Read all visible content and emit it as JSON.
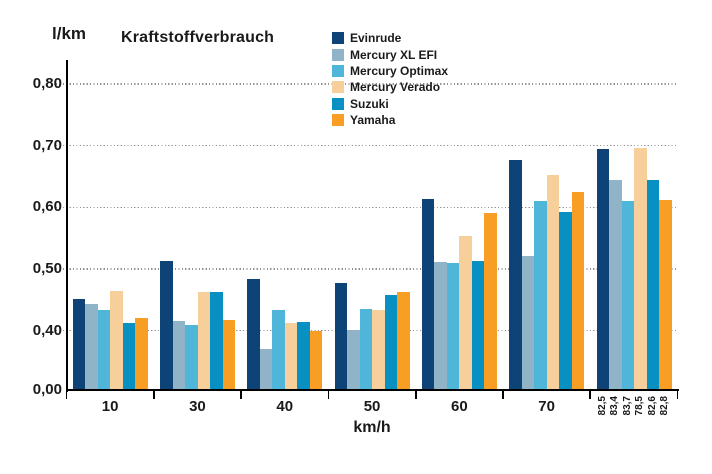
{
  "colors": {
    "background": "#ffffff",
    "axis": "#000000",
    "grid_dots": "#939393",
    "text": "#1a1a1a"
  },
  "chart_data": {
    "type": "bar",
    "title": "Kraftstoffverbrauch",
    "ylabel": "l/km",
    "xlabel": "km/h",
    "legend_position": "top-center",
    "grid": "dotted horizontal lines at each labeled y tick",
    "y_axis": {
      "ticks": [
        {
          "label": "0,00",
          "value": 0.0
        },
        {
          "label": "0,40",
          "value": 0.4
        },
        {
          "label": "0,50",
          "value": 0.5
        },
        {
          "label": "0,60",
          "value": 0.6
        },
        {
          "label": "0,70",
          "value": 0.7
        },
        {
          "label": "0,80",
          "value": 0.8
        }
      ],
      "axis_break": {
        "from": 0.0,
        "to": 0.4,
        "note": "segment 0,00-0,40 compressed to one tick interval"
      }
    },
    "series": [
      {
        "name": "Evinrude",
        "color": "#0d4377"
      },
      {
        "name": "Mercury XL EFI",
        "color": "#91b3c7"
      },
      {
        "name": "Mercury Optimax",
        "color": "#4fb6da"
      },
      {
        "name": "Mercury Verado",
        "color": "#f7cf9b"
      },
      {
        "name": "Suzuki",
        "color": "#0890c3"
      },
      {
        "name": "Yamaha",
        "color": "#f99e24"
      }
    ],
    "groups": [
      {
        "label": "10",
        "values": [
          0.452,
          0.444,
          0.434,
          0.464,
          0.412,
          0.42
        ]
      },
      {
        "label": "30",
        "values": [
          0.513,
          0.416,
          0.41,
          0.462,
          0.463,
          0.418
        ]
      },
      {
        "label": "40",
        "values": [
          0.484,
          0.278,
          0.434,
          0.412,
          0.414,
          0.4
        ]
      },
      {
        "label": "50",
        "values": [
          0.478,
          0.401,
          0.435,
          0.434,
          0.458,
          0.462
        ]
      },
      {
        "label": "60",
        "values": [
          0.614,
          0.512,
          0.51,
          0.554,
          0.513,
          0.59
        ]
      },
      {
        "label": "70",
        "values": [
          0.676,
          0.521,
          0.611,
          0.653,
          0.593,
          0.624
        ]
      },
      {
        "label": "",
        "bar_labels": [
          "82,5",
          "83,4",
          "83,7",
          "78,5",
          "82,6",
          "82,8"
        ],
        "values": [
          0.694,
          0.644,
          0.611,
          0.696,
          0.645,
          0.612
        ]
      }
    ]
  }
}
